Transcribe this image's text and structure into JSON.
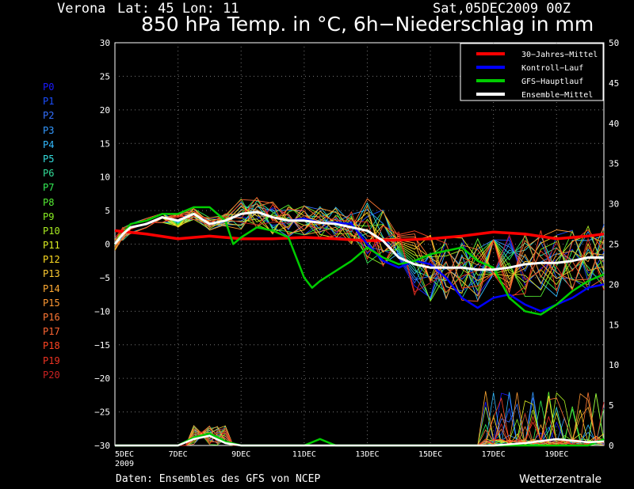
{
  "header": {
    "location": "Verona",
    "coords": "Lat: 45 Lon: 11",
    "run": "Sat,05DEC2009 00Z"
  },
  "title": "850 hPa Temp. in °C, 6h−Niederschlag in mm",
  "footer": {
    "source": "Daten: Ensembles des GFS von NCEP",
    "brand": "Wetterzentrale"
  },
  "colors": {
    "climate": "#ff0000",
    "control": "#0000ff",
    "gfs": "#00cc00",
    "ensemble_mean": "#ffffff",
    "grid": "#777777"
  },
  "members": [
    {
      "label": "P0",
      "color": "#1a1aff"
    },
    {
      "label": "P1",
      "color": "#1a4dff"
    },
    {
      "label": "P2",
      "color": "#3370ff"
    },
    {
      "label": "P3",
      "color": "#3399ff"
    },
    {
      "label": "P4",
      "color": "#33bbff"
    },
    {
      "label": "P5",
      "color": "#33dddd"
    },
    {
      "label": "P6",
      "color": "#33dd99"
    },
    {
      "label": "P7",
      "color": "#33ee55"
    },
    {
      "label": "P8",
      "color": "#55ee33"
    },
    {
      "label": "P9",
      "color": "#88ee22"
    },
    {
      "label": "P10",
      "color": "#aaee22"
    },
    {
      "label": "P11",
      "color": "#ddee22"
    },
    {
      "label": "P12",
      "color": "#ffdd22"
    },
    {
      "label": "P13",
      "color": "#ffcc33"
    },
    {
      "label": "P14",
      "color": "#ffaa33"
    },
    {
      "label": "P15",
      "color": "#ff9933"
    },
    {
      "label": "P16",
      "color": "#ff7733"
    },
    {
      "label": "P17",
      "color": "#ff6633"
    },
    {
      "label": "P18",
      "color": "#ff4422"
    },
    {
      "label": "P19",
      "color": "#ee3322"
    },
    {
      "label": "P20",
      "color": "#cc2222"
    }
  ],
  "chart_data": {
    "type": "line",
    "x_unit_days_from_5DEC": true,
    "x_ticks": [
      {
        "label": "5DEC",
        "sub": "2009"
      },
      {
        "label": "7DEC"
      },
      {
        "label": "9DEC"
      },
      {
        "label": "11DEC"
      },
      {
        "label": "13DEC"
      },
      {
        "label": "15DEC"
      },
      {
        "label": "17DEC"
      },
      {
        "label": "19DEC"
      }
    ],
    "xlim": [
      0,
      15.5
    ],
    "ylim_left": [
      -30,
      30
    ],
    "ylim_right": [
      0,
      50
    ],
    "left_ticks": [
      30,
      25,
      20,
      15,
      10,
      5,
      0,
      -5,
      -10,
      -15,
      -20,
      -25,
      -30
    ],
    "right_ticks": [
      50,
      45,
      40,
      35,
      30,
      25,
      20,
      15,
      10,
      5,
      0
    ],
    "grid": true,
    "legend_position": "top-right",
    "legend": [
      {
        "label": "30−Jahres−Mittel",
        "key": "climate"
      },
      {
        "label": "Kontroll−Lauf",
        "key": "control"
      },
      {
        "label": "GFS−Hauptlauf",
        "key": "gfs"
      },
      {
        "label": "Ensemble−Mittel",
        "key": "ensemble_mean"
      }
    ],
    "series_temp": {
      "climate": [
        [
          0,
          2
        ],
        [
          1,
          1.5
        ],
        [
          2,
          0.8
        ],
        [
          3,
          1.2
        ],
        [
          4,
          0.8
        ],
        [
          5,
          0.8
        ],
        [
          6,
          1.0
        ],
        [
          7,
          0.8
        ],
        [
          8,
          0.5
        ],
        [
          9,
          0.6
        ],
        [
          10,
          0.8
        ],
        [
          11,
          1.2
        ],
        [
          12,
          1.8
        ],
        [
          13,
          1.5
        ],
        [
          14,
          0.8
        ],
        [
          15,
          1.2
        ],
        [
          15.5,
          1.5
        ]
      ],
      "ensemble_mean": [
        [
          0,
          0
        ],
        [
          0.25,
          1.5
        ],
        [
          0.5,
          2.5
        ],
        [
          1,
          3
        ],
        [
          1.5,
          4
        ],
        [
          2,
          3.5
        ],
        [
          2.5,
          4.5
        ],
        [
          3,
          3
        ],
        [
          3.5,
          3.5
        ],
        [
          4,
          4.5
        ],
        [
          4.5,
          4.8
        ],
        [
          5,
          4
        ],
        [
          5.5,
          3.5
        ],
        [
          6,
          3.5
        ],
        [
          6.5,
          3.2
        ],
        [
          7,
          3
        ],
        [
          7.5,
          2.5
        ],
        [
          8,
          2
        ],
        [
          8.5,
          0.5
        ],
        [
          9,
          -2
        ],
        [
          9.5,
          -3
        ],
        [
          10,
          -3.5
        ],
        [
          10.5,
          -3.5
        ],
        [
          11,
          -3.5
        ],
        [
          11.5,
          -3.8
        ],
        [
          12,
          -3.8
        ],
        [
          12.5,
          -3.5
        ],
        [
          13,
          -3
        ],
        [
          13.5,
          -2.8
        ],
        [
          14,
          -2.8
        ],
        [
          14.5,
          -2.5
        ],
        [
          15,
          -2
        ],
        [
          15.5,
          -2
        ]
      ],
      "control": [
        [
          0,
          0
        ],
        [
          0.25,
          1.5
        ],
        [
          0.5,
          2.5
        ],
        [
          1,
          3
        ],
        [
          1.5,
          4
        ],
        [
          2,
          3.5
        ],
        [
          2.5,
          4.5
        ],
        [
          3,
          3
        ],
        [
          3.5,
          3.5
        ],
        [
          4,
          4.5
        ],
        [
          4.5,
          4.8
        ],
        [
          5,
          4
        ],
        [
          5.5,
          3.5
        ],
        [
          6,
          3.8
        ],
        [
          6.5,
          3.2
        ],
        [
          7,
          3.2
        ],
        [
          7.5,
          3
        ],
        [
          8,
          0
        ],
        [
          8.5,
          -2.5
        ],
        [
          9,
          -3.5
        ],
        [
          9.5,
          -2.5
        ],
        [
          10,
          -3
        ],
        [
          10.5,
          -5
        ],
        [
          11,
          -8
        ],
        [
          11.5,
          -9.5
        ],
        [
          12,
          -8
        ],
        [
          12.5,
          -7.5
        ],
        [
          13,
          -9
        ],
        [
          13.5,
          -10
        ],
        [
          14,
          -9
        ],
        [
          14.5,
          -8
        ],
        [
          15,
          -6.5
        ],
        [
          15.5,
          -6
        ]
      ],
      "gfs": [
        [
          0,
          0
        ],
        [
          0.25,
          1.5
        ],
        [
          0.5,
          3
        ],
        [
          1,
          3.5
        ],
        [
          1.5,
          4.5
        ],
        [
          2,
          4.5
        ],
        [
          2.5,
          5.5
        ],
        [
          3,
          5.5
        ],
        [
          3.5,
          3.5
        ],
        [
          3.75,
          0
        ],
        [
          4,
          1
        ],
        [
          4.5,
          2.5
        ],
        [
          5,
          2
        ],
        [
          5.5,
          1
        ],
        [
          6,
          -5
        ],
        [
          6.25,
          -6.5
        ],
        [
          6.5,
          -5.5
        ],
        [
          7,
          -4
        ],
        [
          7.5,
          -2.5
        ],
        [
          8,
          -0.5
        ],
        [
          8.5,
          -2
        ],
        [
          9,
          -3
        ],
        [
          9.5,
          -2.5
        ],
        [
          10,
          -1.5
        ],
        [
          10.5,
          -1
        ],
        [
          11,
          -0.5
        ],
        [
          11.5,
          -2.5
        ],
        [
          12,
          -3.5
        ],
        [
          12.5,
          -8
        ],
        [
          13,
          -10
        ],
        [
          13.5,
          -10.5
        ],
        [
          14,
          -9
        ],
        [
          14.5,
          -7
        ],
        [
          15,
          -5.5
        ],
        [
          15.5,
          -4.5
        ]
      ]
    },
    "series_precip": {
      "gfs": [
        [
          0,
          0
        ],
        [
          2,
          0
        ],
        [
          2.5,
          1
        ],
        [
          3,
          1.5
        ],
        [
          3.5,
          0.5
        ],
        [
          4,
          0
        ],
        [
          6,
          0
        ],
        [
          6.5,
          0.8
        ],
        [
          7,
          0
        ],
        [
          15,
          0
        ],
        [
          15.5,
          0.8
        ]
      ],
      "ensemble_mean": [
        [
          0,
          0
        ],
        [
          2,
          0
        ],
        [
          2.5,
          0.8
        ],
        [
          3,
          1.2
        ],
        [
          3.5,
          0.3
        ],
        [
          4,
          0
        ],
        [
          12,
          0
        ],
        [
          13,
          0.3
        ],
        [
          14,
          0.8
        ],
        [
          15,
          0.4
        ],
        [
          15.5,
          0.5
        ]
      ]
    }
  }
}
